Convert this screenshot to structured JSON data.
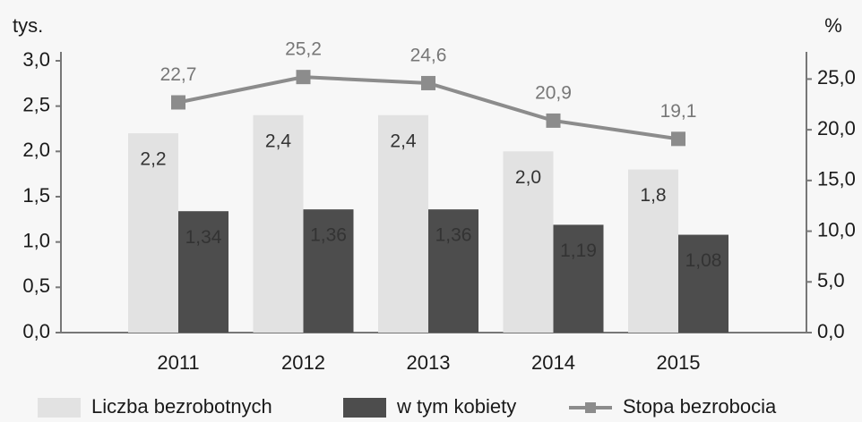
{
  "chart_data": {
    "type": "bar-line",
    "y_label": "tys.",
    "y2_label": "%",
    "categories": [
      "2011",
      "2012",
      "2013",
      "2014",
      "2015"
    ],
    "series": [
      {
        "name": "Liczba bezrobotnych",
        "color": "#e2e2e2",
        "type": "bar",
        "values": [
          2.2,
          2.4,
          2.4,
          2.0,
          1.8
        ],
        "value_labels": [
          "2,2",
          "2,4",
          "2,4",
          "2,0",
          "1,8"
        ]
      },
      {
        "name": "w tym kobiety",
        "color": "#4d4d4d",
        "type": "bar",
        "values": [
          1.34,
          1.36,
          1.36,
          1.19,
          1.08
        ],
        "value_labels": [
          "1,34",
          "1,36",
          "1,36",
          "1,19",
          "1,08"
        ]
      },
      {
        "name": "Stopa bezrobocia",
        "color": "#8c8c8c",
        "type": "line",
        "axis": "y2",
        "values": [
          22.7,
          25.2,
          24.6,
          20.9,
          19.1
        ],
        "value_labels": [
          "22,7",
          "25,2",
          "24,6",
          "20,9",
          "19,1"
        ]
      }
    ],
    "ylim": [
      0,
      3.0
    ],
    "yticks": [
      {
        "value": 0,
        "label": "0,0"
      },
      {
        "value": 0.5,
        "label": "0,5"
      },
      {
        "value": 1,
        "label": "1,0"
      },
      {
        "value": 1.5,
        "label": "1,5"
      },
      {
        "value": 2,
        "label": "2,0"
      },
      {
        "value": 2.5,
        "label": "2,5"
      },
      {
        "value": 3,
        "label": "3,0"
      }
    ],
    "y2lim": [
      0,
      26.8
    ],
    "y2ticks": [
      {
        "value": 0,
        "label": "0,0"
      },
      {
        "value": 5,
        "label": "5,0"
      },
      {
        "value": 10,
        "label": "10,0"
      },
      {
        "value": 15,
        "label": "15,0"
      },
      {
        "value": 20,
        "label": "20,0"
      },
      {
        "value": 25,
        "label": "25,0"
      }
    ],
    "legend": "bottom"
  }
}
